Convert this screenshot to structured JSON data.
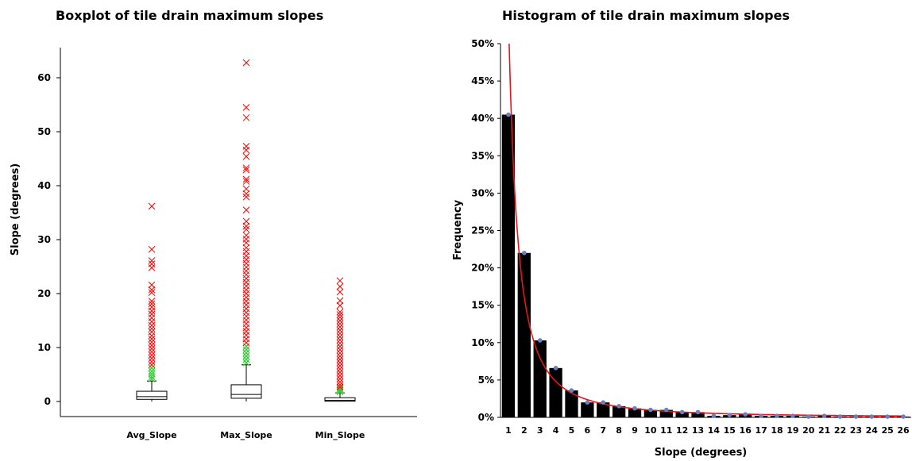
{
  "charts": [
    {
      "title": "Boxplot of tile drain maximum slopes",
      "type": "box",
      "ylabel": "Slope (degrees)",
      "xlabel": "",
      "ylim": [
        -2,
        66
      ],
      "yticks": [
        0,
        10,
        20,
        30,
        40,
        50,
        60
      ],
      "categories": [
        "Avg_Slope",
        "Max_Slope",
        "Min_Slope"
      ],
      "boxes": [
        {
          "name": "Avg_Slope",
          "min": 0,
          "q1": 0.4,
          "median": 0.9,
          "q3": 1.9,
          "whisker_high": 3.8,
          "near_outliers": [
            4.2,
            4.6,
            5.1,
            5.6,
            6.2
          ],
          "far_outliers": [
            36.2,
            28.2,
            26.1,
            25.5,
            24.8,
            21.6,
            20.7,
            20.2,
            18.6,
            18.1,
            17.5,
            16.8,
            16.2,
            15.5,
            14.8,
            14.1,
            13.5,
            12.9,
            12.2,
            11.6,
            11.0,
            10.4,
            9.8,
            9.2,
            8.6,
            8.0,
            7.4,
            6.8
          ]
        },
        {
          "name": "Max_Slope",
          "min": 0,
          "q1": 0.6,
          "median": 1.3,
          "q3": 3.1,
          "whisker_high": 6.8,
          "near_outliers": [
            7.2,
            7.8,
            8.4,
            9.0,
            9.6,
            10.2
          ],
          "far_outliers": [
            62.8,
            54.5,
            52.6,
            47.3,
            46.6,
            45.4,
            43.3,
            42.9,
            41.2,
            40.8,
            39.4,
            38.5,
            37.9,
            35.5,
            33.4,
            32.5,
            31.9,
            30.8,
            30.1,
            29.4,
            28.5,
            27.8,
            27.0,
            26.3,
            25.6,
            24.9,
            24.2,
            23.5,
            22.8,
            22.1,
            21.4,
            20.7,
            20.0,
            19.3,
            18.6,
            17.9,
            17.2,
            16.5,
            15.8,
            15.1,
            14.4,
            13.7,
            13.0,
            12.3,
            11.6,
            10.9
          ]
        },
        {
          "name": "Min_Slope",
          "min": 0,
          "q1": 0.05,
          "median": 0.2,
          "q3": 0.7,
          "whisker_high": 1.6,
          "near_outliers": [
            1.8,
            2.1,
            2.4
          ],
          "far_outliers": [
            22.4,
            21.3,
            20.3,
            18.7,
            17.8,
            16.6,
            16.1,
            15.6,
            15.0,
            14.4,
            13.8,
            13.2,
            12.6,
            12.0,
            11.4,
            10.8,
            10.2,
            9.6,
            9.0,
            8.4,
            7.8,
            7.2,
            6.6,
            6.0,
            5.4,
            4.8,
            4.2,
            3.6,
            3.1,
            2.7
          ]
        }
      ],
      "colors": {
        "far_outlier": "#ff0000",
        "near_outlier": "#33cc33",
        "box": "#000000"
      }
    },
    {
      "title": "Histogram of tile drain maximum slopes",
      "type": "bar",
      "xlabel": "Slope (degrees)",
      "ylabel": "Frequency",
      "ylim": [
        0,
        0.5
      ],
      "yticks": [
        "0%",
        "5%",
        "10%",
        "15%",
        "20%",
        "25%",
        "30%",
        "35%",
        "40%",
        "45%",
        "50%"
      ],
      "categories": [
        "1",
        "2",
        "3",
        "4",
        "5",
        "6",
        "7",
        "8",
        "9",
        "10",
        "11",
        "12",
        "13",
        "14",
        "15",
        "16",
        "17",
        "18",
        "19",
        "20",
        "21",
        "22",
        "23",
        "24",
        "25",
        "26"
      ],
      "values": [
        0.405,
        0.22,
        0.103,
        0.066,
        0.036,
        0.02,
        0.02,
        0.015,
        0.012,
        0.01,
        0.01,
        0.007,
        0.007,
        0.002,
        0.003,
        0.004,
        0.002,
        0.002,
        0.002,
        0.001,
        0.002,
        0.001,
        0.001,
        0.001,
        0.001,
        0.001
      ],
      "fit_curve": {
        "type": "power",
        "description": "fitted decay curve",
        "x_start": 1.05,
        "y_at_start": 0.5,
        "exponent": -1.75
      },
      "colors": {
        "bar": "#000000",
        "curve": "#e8141c",
        "marker": "#6b7fc4"
      }
    }
  ]
}
